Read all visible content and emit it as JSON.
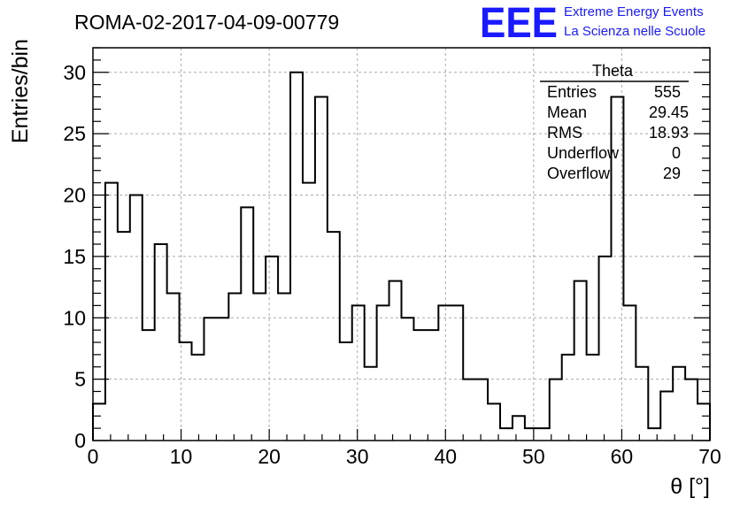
{
  "run_title": "ROMA-02-2017-04-09-00779",
  "logo": {
    "mark": "EEE",
    "line1": "Extreme Energy Events",
    "line2": "La Scienza nelle Scuole",
    "color": "#1a1aff"
  },
  "stats": {
    "title": "Theta",
    "rows": [
      {
        "label": "Entries",
        "value": "555"
      },
      {
        "label": "Mean",
        "value": "29.45"
      },
      {
        "label": "RMS",
        "value": "18.93"
      },
      {
        "label": "Underflow",
        "value": "0"
      },
      {
        "label": "Overflow",
        "value": "29"
      }
    ]
  },
  "chart_data": {
    "type": "histogram",
    "xlabel": "θ [°]",
    "ylabel": "Entries/bin",
    "xlim": [
      0,
      70
    ],
    "ylim": [
      0,
      32
    ],
    "bin_width": 1.4,
    "xticks": [
      0,
      10,
      20,
      30,
      40,
      50,
      60,
      70
    ],
    "yticks": [
      0,
      5,
      10,
      15,
      20,
      25,
      30
    ],
    "grid": true,
    "line_color": "#000000",
    "values": [
      3,
      21,
      17,
      20,
      9,
      16,
      12,
      8,
      7,
      10,
      10,
      12,
      19,
      12,
      15,
      12,
      30,
      21,
      28,
      17,
      8,
      11,
      6,
      11,
      13,
      10,
      9,
      9,
      11,
      11,
      5,
      5,
      3,
      1,
      2,
      1,
      1,
      5,
      7,
      13,
      7,
      15,
      28,
      11,
      6,
      1,
      4,
      6,
      5,
      3
    ]
  }
}
